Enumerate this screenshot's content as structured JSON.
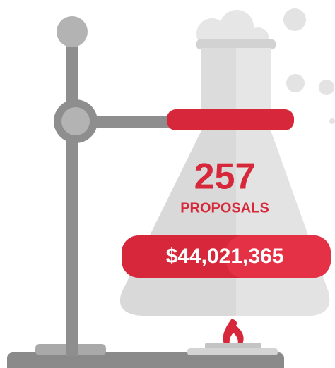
{
  "count": "257",
  "count_label": "PROPOSALS",
  "amount": "$44,021,365"
}
